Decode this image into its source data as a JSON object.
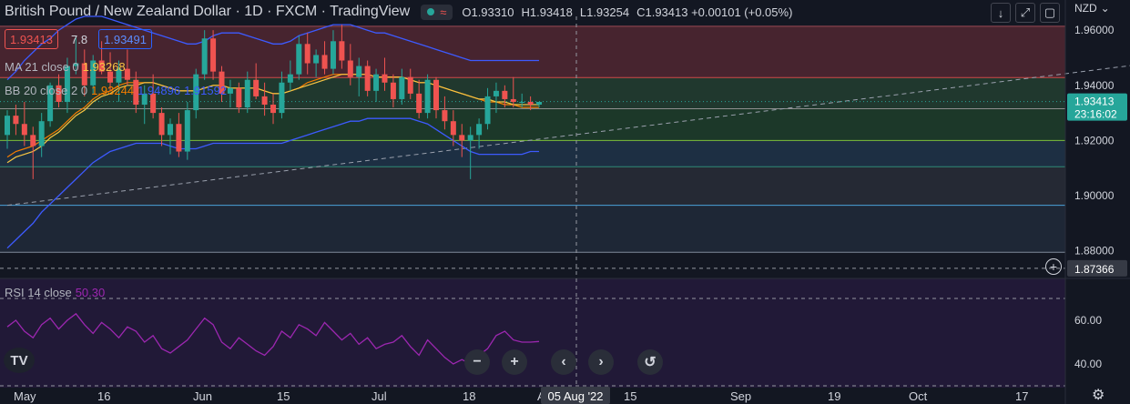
{
  "header": {
    "title": "British Pound / New Zealand Dollar · 1D · FXCM · TradingView",
    "status_wave": "≈",
    "ohlc": [
      {
        "k": "O",
        "v": "1.93310"
      },
      {
        "k": "H",
        "v": "1.93418"
      },
      {
        "k": "L",
        "v": "1.93254"
      },
      {
        "k": "C",
        "v": "1.93413 +0.00101 (+0.05%)"
      }
    ]
  },
  "toolbar": {
    "currency": "NZD",
    "currency_arrow": "⌄",
    "download_icon": "↓",
    "expand_icon": "⤢",
    "fullscreen_icon": "▢"
  },
  "prices": {
    "sell": "1.93413",
    "spread": "7.8",
    "buy": "1.93491"
  },
  "indicators": {
    "ma": {
      "name": "MA 21 close 0",
      "value": "1.93268"
    },
    "bb": {
      "name": "BB 20 close 2 0",
      "basis": "1.93244",
      "upper": "1.94896",
      "lower": "1.91592"
    },
    "rsi": {
      "name": "RSI 14 close",
      "value": "50.30"
    }
  },
  "colors": {
    "bg": "#131722",
    "bull": "#26a69a",
    "bear": "#ef5350",
    "ma": "#f7c543",
    "bb_basis": "#f57c00",
    "bb_band": "#3d5afe",
    "rsi": "#9c27b0",
    "crosshair_box": "#363a45"
  },
  "price_axis": {
    "labels": [
      "1.96000",
      "1.94000",
      "1.92000",
      "1.90000",
      "1.88000"
    ],
    "last_price": "1.93413",
    "countdown": "23:16:02",
    "crosshair_price": "1.87366"
  },
  "rsi_axis": {
    "labels": [
      "60.00",
      "40.00"
    ]
  },
  "time_axis": {
    "labels": [
      "May",
      "16",
      "Jun",
      "15",
      "Jul",
      "18",
      "A",
      "15",
      "Sep",
      "19",
      "Oct",
      "17"
    ],
    "crosshair_date": "05 Aug '22"
  },
  "nav": {
    "minus": "−",
    "plus": "+",
    "prev": "‹",
    "next": "›",
    "reset": "↺",
    "logo": "TV"
  },
  "axis_plus": "+",
  "axis_gear": "⚙",
  "chart_data": {
    "type": "candlestick",
    "interval": "1D",
    "ylim": [
      1.87,
      1.965
    ],
    "fib_levels": [
      1.9614,
      1.9428,
      1.9315,
      1.92,
      1.9105,
      1.8965,
      1.8795
    ],
    "trendline": {
      "from": [
        0,
        1.8965
      ],
      "to": [
        168,
        1.9615
      ]
    },
    "candles": [
      [
        1.922,
        1.931,
        1.917,
        1.929
      ],
      [
        1.929,
        1.933,
        1.922,
        1.926
      ],
      [
        1.926,
        1.934,
        1.918,
        1.922
      ],
      [
        1.922,
        1.925,
        1.906,
        1.918
      ],
      [
        1.918,
        1.93,
        1.914,
        1.927
      ],
      [
        1.927,
        1.941,
        1.925,
        1.94
      ],
      [
        1.94,
        1.944,
        1.932,
        1.934
      ],
      [
        1.934,
        1.95,
        1.93,
        1.947
      ],
      [
        1.947,
        1.958,
        1.944,
        1.948
      ],
      [
        1.948,
        1.953,
        1.936,
        1.94
      ],
      [
        1.94,
        1.951,
        1.937,
        1.949
      ],
      [
        1.949,
        1.956,
        1.944,
        1.945
      ],
      [
        1.945,
        1.952,
        1.938,
        1.941
      ],
      [
        1.941,
        1.949,
        1.934,
        1.946
      ],
      [
        1.946,
        1.953,
        1.94,
        1.942
      ],
      [
        1.942,
        1.945,
        1.93,
        1.933
      ],
      [
        1.933,
        1.94,
        1.926,
        1.937
      ],
      [
        1.937,
        1.944,
        1.928,
        1.93
      ],
      [
        1.93,
        1.932,
        1.918,
        1.922
      ],
      [
        1.922,
        1.928,
        1.915,
        1.926
      ],
      [
        1.926,
        1.93,
        1.914,
        1.916
      ],
      [
        1.916,
        1.934,
        1.913,
        1.931
      ],
      [
        1.931,
        1.946,
        1.928,
        1.944
      ],
      [
        1.944,
        1.96,
        1.942,
        1.957
      ],
      [
        1.957,
        1.96,
        1.942,
        1.945
      ],
      [
        1.945,
        1.947,
        1.934,
        1.937
      ],
      [
        1.937,
        1.942,
        1.932,
        1.939
      ],
      [
        1.939,
        1.941,
        1.93,
        1.932
      ],
      [
        1.932,
        1.945,
        1.93,
        1.942
      ],
      [
        1.942,
        1.948,
        1.935,
        1.936
      ],
      [
        1.936,
        1.941,
        1.929,
        1.933
      ],
      [
        1.933,
        1.937,
        1.926,
        1.93
      ],
      [
        1.93,
        1.945,
        1.928,
        1.941
      ],
      [
        1.941,
        1.949,
        1.938,
        1.944
      ],
      [
        1.944,
        1.958,
        1.942,
        1.955
      ],
      [
        1.955,
        1.959,
        1.944,
        1.948
      ],
      [
        1.948,
        1.953,
        1.943,
        1.951
      ],
      [
        1.951,
        1.956,
        1.944,
        1.946
      ],
      [
        1.946,
        1.96,
        1.944,
        1.956
      ],
      [
        1.956,
        1.962,
        1.946,
        1.949
      ],
      [
        1.949,
        1.955,
        1.94,
        1.943
      ],
      [
        1.943,
        1.95,
        1.936,
        1.947
      ],
      [
        1.947,
        1.949,
        1.936,
        1.938
      ],
      [
        1.938,
        1.946,
        1.934,
        1.944
      ],
      [
        1.944,
        1.95,
        1.938,
        1.941
      ],
      [
        1.941,
        1.944,
        1.932,
        1.935
      ],
      [
        1.935,
        1.946,
        1.933,
        1.943
      ],
      [
        1.943,
        1.946,
        1.935,
        1.937
      ],
      [
        1.937,
        1.942,
        1.928,
        1.93
      ],
      [
        1.93,
        1.944,
        1.928,
        1.942
      ],
      [
        1.942,
        1.943,
        1.928,
        1.931
      ],
      [
        1.931,
        1.936,
        1.924,
        1.927
      ],
      [
        1.927,
        1.931,
        1.918,
        1.922
      ],
      [
        1.922,
        1.926,
        1.914,
        1.92
      ],
      [
        1.92,
        1.925,
        1.906,
        1.922
      ],
      [
        1.922,
        1.928,
        1.917,
        1.926
      ],
      [
        1.926,
        1.939,
        1.924,
        1.936
      ],
      [
        1.936,
        1.941,
        1.93,
        1.938
      ],
      [
        1.938,
        1.94,
        1.932,
        1.935
      ],
      [
        1.935,
        1.943,
        1.932,
        1.934
      ],
      [
        1.934,
        1.937,
        1.932,
        1.934
      ],
      [
        1.934,
        1.936,
        1.931,
        1.933
      ],
      [
        1.933,
        1.934,
        1.932,
        1.934
      ]
    ],
    "ma": [
      1.912,
      1.914,
      1.915,
      1.916,
      1.918,
      1.921,
      1.923,
      1.926,
      1.929,
      1.931,
      1.934,
      1.936,
      1.937,
      1.939,
      1.94,
      1.94,
      1.941,
      1.941,
      1.94,
      1.939,
      1.938,
      1.938,
      1.938,
      1.939,
      1.94,
      1.94,
      1.939,
      1.939,
      1.939,
      1.939,
      1.938,
      1.937,
      1.937,
      1.938,
      1.939,
      1.94,
      1.941,
      1.942,
      1.943,
      1.944,
      1.944,
      1.944,
      1.944,
      1.943,
      1.943,
      1.943,
      1.943,
      1.942,
      1.941,
      1.941,
      1.94,
      1.939,
      1.938,
      1.937,
      1.936,
      1.935,
      1.935,
      1.934,
      1.934,
      1.933,
      1.933,
      1.933,
      1.933
    ],
    "bb_basis": [
      1.914,
      1.916,
      1.917,
      1.918,
      1.92,
      1.922,
      1.924,
      1.927,
      1.93,
      1.932,
      1.935,
      1.937,
      1.938,
      1.94,
      1.941,
      1.941,
      1.941,
      1.941,
      1.94,
      1.939,
      1.938,
      1.938,
      1.938,
      1.939,
      1.94,
      1.94,
      1.939,
      1.939,
      1.939,
      1.939,
      1.938,
      1.937,
      1.937,
      1.938,
      1.939,
      1.941,
      1.942,
      1.943,
      1.944,
      1.944,
      1.944,
      1.944,
      1.944,
      1.943,
      1.943,
      1.943,
      1.943,
      1.942,
      1.941,
      1.941,
      1.94,
      1.939,
      1.938,
      1.937,
      1.936,
      1.935,
      1.934,
      1.934,
      1.933,
      1.933,
      1.932,
      1.932,
      1.932
    ],
    "bb_upper": [
      1.942,
      1.945,
      1.949,
      1.952,
      1.955,
      1.957,
      1.96,
      1.962,
      1.964,
      1.965,
      1.965,
      1.965,
      1.964,
      1.963,
      1.962,
      1.961,
      1.96,
      1.959,
      1.958,
      1.957,
      1.956,
      1.955,
      1.955,
      1.956,
      1.958,
      1.959,
      1.959,
      1.959,
      1.958,
      1.957,
      1.956,
      1.955,
      1.955,
      1.956,
      1.958,
      1.959,
      1.96,
      1.961,
      1.962,
      1.962,
      1.962,
      1.961,
      1.96,
      1.959,
      1.959,
      1.958,
      1.957,
      1.956,
      1.955,
      1.954,
      1.953,
      1.952,
      1.951,
      1.95,
      1.949,
      1.949,
      1.949,
      1.949,
      1.949,
      1.949,
      1.949,
      1.949,
      1.949
    ],
    "bb_lower": [
      1.881,
      1.884,
      1.887,
      1.89,
      1.894,
      1.897,
      1.9,
      1.903,
      1.906,
      1.909,
      1.912,
      1.914,
      1.916,
      1.917,
      1.918,
      1.919,
      1.919,
      1.919,
      1.919,
      1.918,
      1.917,
      1.917,
      1.917,
      1.918,
      1.919,
      1.919,
      1.919,
      1.919,
      1.919,
      1.919,
      1.919,
      1.919,
      1.919,
      1.92,
      1.921,
      1.922,
      1.923,
      1.924,
      1.925,
      1.926,
      1.927,
      1.927,
      1.928,
      1.928,
      1.928,
      1.928,
      1.928,
      1.928,
      1.927,
      1.926,
      1.924,
      1.922,
      1.92,
      1.918,
      1.916,
      1.915,
      1.915,
      1.915,
      1.915,
      1.915,
      1.915,
      1.916,
      1.916
    ],
    "rsi_ylim": [
      30,
      75
    ],
    "rsi_levels": [
      70,
      30
    ],
    "rsi": [
      57,
      60,
      55,
      52,
      58,
      61,
      56,
      60,
      63,
      58,
      54,
      59,
      56,
      52,
      57,
      55,
      50,
      53,
      47,
      45,
      48,
      51,
      56,
      61,
      58,
      50,
      47,
      52,
      49,
      46,
      44,
      48,
      55,
      52,
      58,
      56,
      53,
      59,
      55,
      51,
      54,
      49,
      52,
      47,
      49,
      50,
      53,
      48,
      44,
      51,
      47,
      43,
      40,
      42,
      40,
      44,
      47,
      53,
      55,
      51,
      50,
      50,
      50.3
    ]
  }
}
